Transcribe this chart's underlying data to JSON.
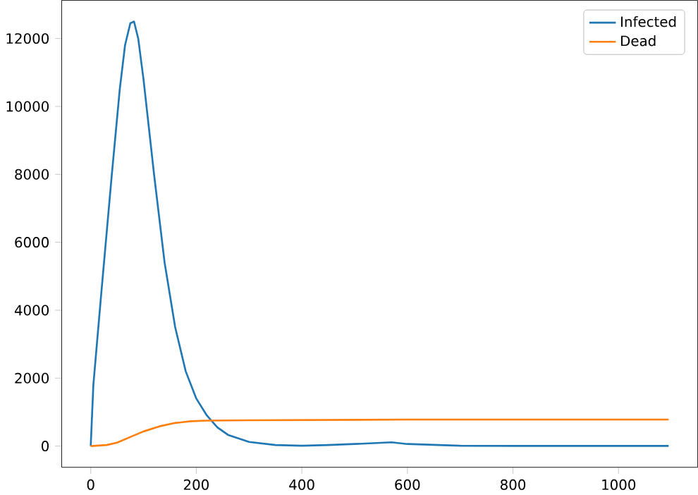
{
  "chart_data": {
    "type": "line",
    "xlim": [
      -55,
      1150
    ],
    "ylim": [
      -625,
      13125
    ],
    "xticks": [
      0,
      200,
      400,
      600,
      800,
      1000
    ],
    "yticks": [
      0,
      2000,
      4000,
      6000,
      8000,
      10000,
      12000
    ],
    "legend": "top right",
    "grid": false,
    "series": [
      {
        "name": "Infected",
        "color": "#1f77b4",
        "x": [
          0,
          5,
          20,
          40,
          55,
          65,
          75,
          82,
          90,
          100,
          120,
          140,
          160,
          180,
          200,
          220,
          240,
          260,
          300,
          350,
          400,
          450,
          500,
          570,
          600,
          700,
          800,
          1095
        ],
        "values": [
          0,
          1800,
          4500,
          8000,
          10500,
          11800,
          12450,
          12500,
          12000,
          10800,
          8000,
          5400,
          3500,
          2200,
          1400,
          900,
          550,
          330,
          120,
          30,
          10,
          30,
          60,
          110,
          60,
          10,
          5,
          5
        ]
      },
      {
        "name": "Dead",
        "color": "#ff7f0e",
        "x": [
          0,
          30,
          50,
          80,
          100,
          130,
          160,
          190,
          220,
          300,
          600,
          1095
        ],
        "values": [
          0,
          30,
          100,
          300,
          430,
          580,
          680,
          730,
          750,
          760,
          780,
          780
        ]
      }
    ]
  }
}
